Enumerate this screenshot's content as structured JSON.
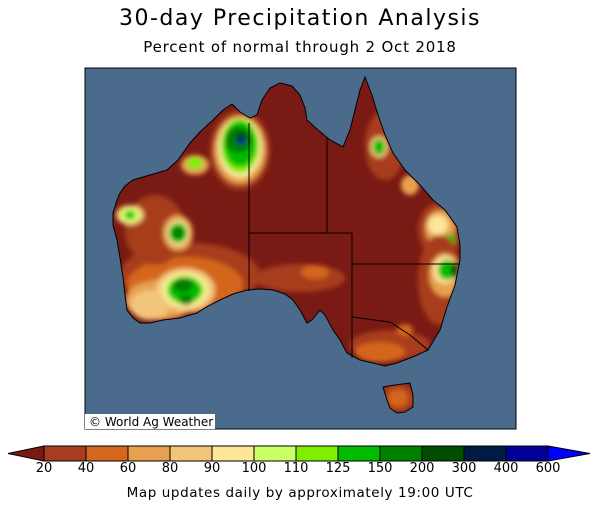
{
  "header": {
    "title": "30-day Precipitation Analysis",
    "subtitle": "Percent of normal through 2 Oct 2018"
  },
  "map": {
    "region": "Australia",
    "copyright": "© World Ag Weather",
    "ocean_color": "#4a6b8c",
    "land_base_color": "#7a1a14"
  },
  "legend": {
    "ticks": [
      "20",
      "40",
      "60",
      "80",
      "90",
      "100",
      "110",
      "125",
      "150",
      "200",
      "300",
      "400",
      "600"
    ],
    "under_color": "#7a1a14",
    "over_color": "#0000ff",
    "colors": [
      "#a83c1e",
      "#d4661e",
      "#e6a050",
      "#f3c57a",
      "#fde59a",
      "#ccff66",
      "#80ee00",
      "#00bb00",
      "#008000",
      "#004d00",
      "#001a44",
      "#000099"
    ]
  },
  "footer": {
    "note": "Map updates daily by approximately 19:00 UTC"
  }
}
